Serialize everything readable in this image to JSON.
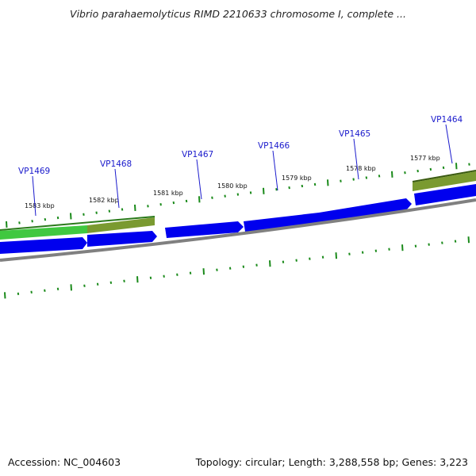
{
  "title": "Vibrio parahaemolyticus RIMD 2210633 chromosome I, complete ...",
  "footer": {
    "accession": "Accession: NC_004603",
    "summary": "Topology: circular; Length: 3,288,558 bp; Genes: 3,223"
  },
  "colors": {
    "gene": "#0000ee",
    "gene_label": "#1a1acc",
    "backbone": "#808080",
    "ticks": "#1a8a1a",
    "gc_high": "#40c840",
    "gc_low": "#6e8a2a"
  },
  "scale_labels": [
    "1583 kbp",
    "1582 kbp",
    "1581 kbp",
    "1580 kbp",
    "1579 kbp",
    "1578 kbp",
    "1577 kbp"
  ],
  "genes": [
    {
      "name": "VP1469"
    },
    {
      "name": "VP1468"
    },
    {
      "name": "VP1467"
    },
    {
      "name": "VP1466"
    },
    {
      "name": "VP1465"
    },
    {
      "name": "VP1464"
    }
  ]
}
